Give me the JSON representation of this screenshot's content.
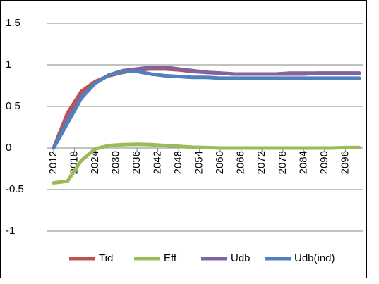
{
  "chart_data": {
    "type": "line",
    "x": [
      2012,
      2016,
      2020,
      2024,
      2028,
      2032,
      2036,
      2040,
      2044,
      2048,
      2052,
      2056,
      2060,
      2064,
      2068,
      2072,
      2076,
      2080,
      2084,
      2088,
      2092,
      2096,
      2100
    ],
    "series": [
      {
        "name": "Tid",
        "color": "#c0504d",
        "values": [
          0,
          0.42,
          0.68,
          0.8,
          0.87,
          0.91,
          0.94,
          0.95,
          0.95,
          0.94,
          0.92,
          0.91,
          0.9,
          0.89,
          0.89,
          0.89,
          0.89,
          0.89,
          0.89,
          0.9,
          0.9,
          0.9,
          0.9
        ]
      },
      {
        "name": "Eff",
        "color": "#9bbb59",
        "values": [
          -0.42,
          -0.4,
          -0.15,
          -0.01,
          0.03,
          0.04,
          0.045,
          0.04,
          0.03,
          0.02,
          0.01,
          0.005,
          0,
          0,
          0,
          0,
          0,
          0,
          0,
          0,
          0,
          0.005,
          0.005
        ]
      },
      {
        "name": "Udb",
        "color": "#8064a2",
        "values": [
          0,
          0.35,
          0.62,
          0.78,
          0.88,
          0.93,
          0.95,
          0.97,
          0.97,
          0.95,
          0.93,
          0.91,
          0.9,
          0.89,
          0.89,
          0.89,
          0.89,
          0.9,
          0.9,
          0.9,
          0.9,
          0.9,
          0.9
        ]
      },
      {
        "name": "Udb(ind)",
        "color": "#4f81bd",
        "values": [
          0,
          0.3,
          0.6,
          0.78,
          0.88,
          0.92,
          0.92,
          0.89,
          0.87,
          0.86,
          0.85,
          0.85,
          0.84,
          0.84,
          0.84,
          0.84,
          0.84,
          0.84,
          0.84,
          0.84,
          0.84,
          0.84,
          0.84
        ]
      }
    ],
    "xlim": [
      2011,
      2101
    ],
    "xticks": [
      2012,
      2018,
      2024,
      2030,
      2036,
      2042,
      2048,
      2054,
      2060,
      2066,
      2072,
      2078,
      2084,
      2090,
      2096
    ],
    "ylim": [
      -1,
      1.5
    ],
    "yticks": [
      -1,
      -0.5,
      0,
      0.5,
      1,
      1.5
    ],
    "grid": true,
    "legend": "bottom"
  }
}
